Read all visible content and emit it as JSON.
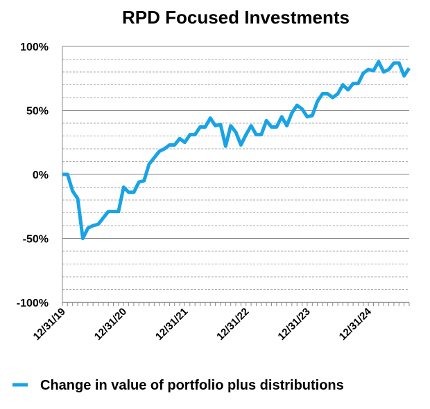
{
  "chart_data": {
    "type": "line",
    "title": "RPD Focused Investments",
    "categories": [
      "12/31/19",
      null,
      null,
      null,
      null,
      null,
      null,
      null,
      null,
      null,
      null,
      null,
      "12/31/20",
      null,
      null,
      null,
      null,
      null,
      null,
      null,
      null,
      null,
      null,
      null,
      "12/31/21",
      null,
      null,
      null,
      null,
      null,
      null,
      null,
      null,
      null,
      null,
      null,
      "12/31/22",
      null,
      null,
      null,
      null,
      null,
      null,
      null,
      null,
      null,
      null,
      null,
      "12/31/23",
      null,
      null,
      null,
      null,
      null,
      null,
      null,
      null,
      null,
      null,
      null,
      "12/31/24",
      null,
      null,
      null,
      null,
      null,
      null,
      null,
      null
    ],
    "series": [
      {
        "name": "Change in value of portfolio plus distributions",
        "color": "#19a3e6",
        "values": [
          0,
          0,
          -13,
          -19,
          -50,
          -42,
          -40,
          -39,
          -34,
          -29,
          -29,
          -29,
          -10,
          -14,
          -14,
          -6,
          -5,
          8,
          13,
          18,
          20,
          23,
          23,
          28,
          25,
          31,
          31,
          37,
          37,
          44,
          38,
          39,
          22,
          38,
          33,
          23,
          31,
          38,
          31,
          31,
          42,
          37,
          37,
          45,
          38,
          48,
          54,
          51,
          45,
          46,
          57,
          63,
          63,
          60,
          63,
          70,
          66,
          71,
          71,
          79,
          82,
          81,
          88,
          80,
          82,
          87,
          87,
          77,
          83
        ]
      }
    ],
    "ylim": [
      -100,
      100
    ],
    "yticks": [
      {
        "value": -100,
        "label": "-100%"
      },
      {
        "value": -50,
        "label": "-50%"
      },
      {
        "value": 0,
        "label": "0%"
      },
      {
        "value": 50,
        "label": "50%"
      },
      {
        "value": 100,
        "label": "100%"
      }
    ],
    "yminorticks": [
      -90,
      -80,
      -70,
      -60,
      -40,
      -30,
      -20,
      -10,
      10,
      20,
      30,
      40,
      60,
      70,
      80,
      90
    ],
    "grid": true,
    "legend": "bottom"
  }
}
